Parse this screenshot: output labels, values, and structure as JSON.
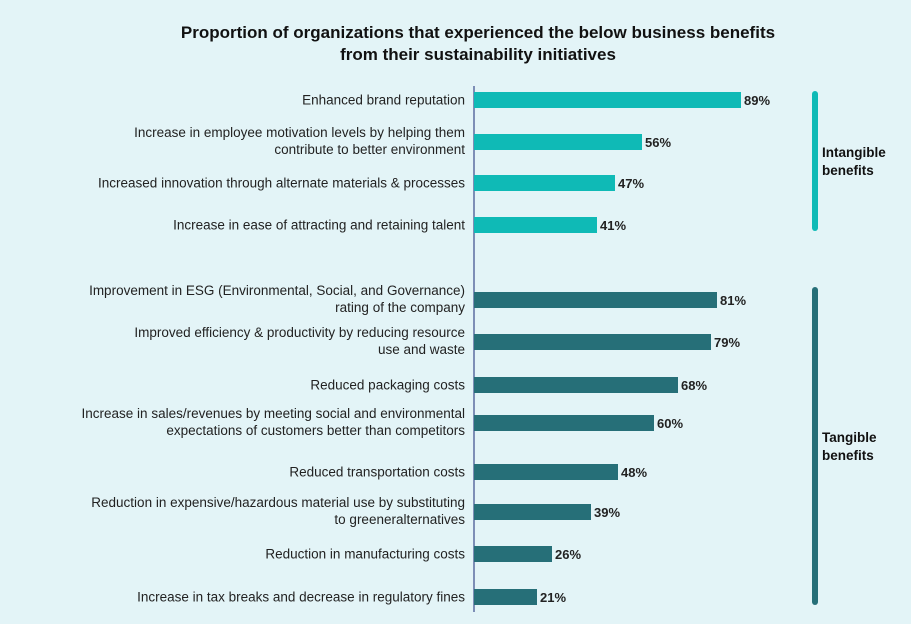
{
  "chart_data": {
    "type": "bar",
    "orientation": "horizontal",
    "title_lines": [
      "Proportion of organizations that experienced the below business benefits",
      "from their sustainability initiatives"
    ],
    "unit": "%",
    "xlim": [
      0,
      100
    ],
    "groups": [
      {
        "name": "Intangible benefits",
        "label_lines": [
          "Intangible",
          "benefits"
        ],
        "color": "#0fbab6",
        "items": [
          {
            "lines": [
              "Enhanced brand reputation"
            ],
            "value": 89,
            "label": "89%"
          },
          {
            "lines": [
              "Increase in employee motivation levels by helping them",
              "contribute to better environment"
            ],
            "value": 56,
            "label": "56%"
          },
          {
            "lines": [
              "Increased innovation through alternate materials & processes"
            ],
            "value": 47,
            "label": "47%"
          },
          {
            "lines": [
              "Increase in ease of attracting and retaining talent"
            ],
            "value": 41,
            "label": "41%"
          }
        ]
      },
      {
        "name": "Tangible benefits",
        "label_lines": [
          "Tangible",
          "benefits"
        ],
        "color": "#266f78",
        "items": [
          {
            "lines": [
              "Improvement in ESG (Environmental, Social, and Governance)",
              "rating of the company"
            ],
            "value": 81,
            "label": "81%"
          },
          {
            "lines": [
              "Improved efficiency & productivity by reducing resource",
              "use and waste"
            ],
            "value": 79,
            "label": "79%"
          },
          {
            "lines": [
              "Reduced packaging costs"
            ],
            "value": 68,
            "label": "68%"
          },
          {
            "lines": [
              "Increase in sales/revenues by meeting social and environmental",
              "expectations of customers better than competitors"
            ],
            "value": 60,
            "label": "60%"
          },
          {
            "lines": [
              "Reduced transportation costs"
            ],
            "value": 48,
            "label": "48%"
          },
          {
            "lines": [
              "Reduction in expensive/hazardous material use by substituting",
              "to greeneralternatives"
            ],
            "value": 39,
            "label": "39%"
          },
          {
            "lines": [
              "Reduction in manufacturing costs"
            ],
            "value": 26,
            "label": "26%"
          },
          {
            "lines": [
              "Increase in tax breaks and decrease in regulatory fines"
            ],
            "value": 21,
            "label": "21%"
          }
        ]
      }
    ]
  }
}
